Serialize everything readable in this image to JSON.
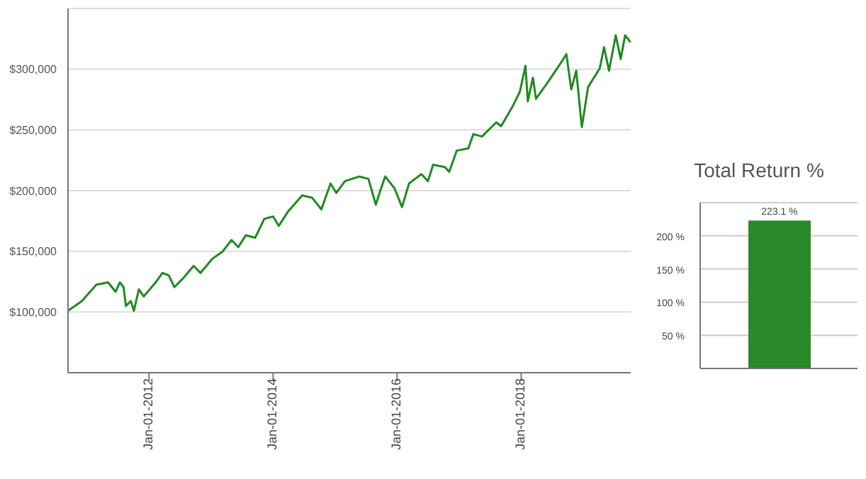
{
  "chart_data": [
    {
      "type": "line",
      "x": [
        "2010-09-11",
        "2010-12-01",
        "2011-02-25",
        "2011-05-05",
        "2011-06-18",
        "2011-07-13",
        "2011-08-04",
        "2011-08-18",
        "2011-09-16",
        "2011-10-04",
        "2011-11-02",
        "2011-12-01",
        "2012-02-09",
        "2012-03-20",
        "2012-04-26",
        "2012-05-29",
        "2012-07-23",
        "2012-09-20",
        "2012-10-30",
        "2013-01-08",
        "2013-03-08",
        "2013-05-01",
        "2013-06-10",
        "2013-07-24",
        "2013-09-17",
        "2013-11-10",
        "2014-01-01",
        "2014-02-03",
        "2014-03-29",
        "2014-06-21",
        "2014-08-18",
        "2014-10-12",
        "2014-12-05",
        "2015-01-08",
        "2015-02-28",
        "2015-05-23",
        "2015-07-16",
        "2015-08-29",
        "2015-09-24",
        "2015-10-23",
        "2015-12-17",
        "2016-01-30",
        "2016-03-11",
        "2016-05-23",
        "2016-07-01",
        "2016-07-31",
        "2016-10-08",
        "2016-11-03",
        "2016-12-17",
        "2017-02-24",
        "2017-03-25",
        "2017-05-15",
        "2017-08-07",
        "2017-09-05",
        "2017-11-13",
        "2017-12-24",
        "2018-01-26",
        "2018-02-09",
        "2018-03-11",
        "2018-03-29",
        "2018-06-06",
        "2018-08-29",
        "2018-09-24",
        "2018-10-23",
        "2018-11-21",
        "2018-12-24",
        "2019-01-30",
        "2019-04-09",
        "2019-05-04",
        "2019-06-02",
        "2019-07-12",
        "2019-08-10",
        "2019-09-05",
        "2019-10-08"
      ],
      "series": [
        {
          "color": "#208a20",
          "values": [
            101000,
            109000,
            122500,
            124400,
            116700,
            124400,
            120500,
            105000,
            109000,
            101000,
            118600,
            112800,
            124400,
            132200,
            130200,
            120500,
            128300,
            138000,
            132200,
            143800,
            149600,
            159300,
            153500,
            163200,
            161200,
            176700,
            178700,
            170900,
            182600,
            196100,
            194200,
            184500,
            205800,
            198100,
            207800,
            211600,
            209700,
            188400,
            200000,
            211600,
            201900,
            186400,
            205800,
            213600,
            207800,
            221300,
            219400,
            215500,
            232900,
            234900,
            246500,
            244600,
            256200,
            253100,
            269800,
            281400,
            302700,
            273600,
            293000,
            275600,
            289100,
            306600,
            312400,
            283300,
            298800,
            252300,
            285300,
            300800,
            318200,
            298800,
            327900,
            308500,
            327900,
            322100
          ]
        }
      ],
      "xlim": [
        "2010-09-11",
        "2019-10-08"
      ],
      "xticks": [
        {
          "value": "2012-01-01",
          "label": "Jan-01-2012"
        },
        {
          "value": "2014-01-01",
          "label": "Jan-01-2014"
        },
        {
          "value": "2016-01-01",
          "label": "Jan-01-2016"
        },
        {
          "value": "2018-01-01",
          "label": "Jan-01-2018"
        }
      ],
      "ylim": [
        50000,
        350000
      ],
      "yticks": [
        {
          "value": 100000,
          "label": "$100,000"
        },
        {
          "value": 150000,
          "label": "$150,000"
        },
        {
          "value": 200000,
          "label": "$200,000"
        },
        {
          "value": 250000,
          "label": "$250,000"
        },
        {
          "value": 300000,
          "label": "$300,000"
        }
      ],
      "grid": "y",
      "marker": "none",
      "line_style": "solid"
    },
    {
      "type": "bar",
      "title": "Total Return %",
      "categories": [
        null
      ],
      "values": [
        223.1
      ],
      "color": "#2a8a2a",
      "value_labels": [
        "223.1 %"
      ],
      "ylim": [
        0,
        250
      ],
      "yticks": [
        {
          "value": 50,
          "label": "50 %"
        },
        {
          "value": 100,
          "label": "100 %"
        },
        {
          "value": 150,
          "label": "150 %"
        },
        {
          "value": 200,
          "label": "200 %"
        }
      ],
      "grid": "y"
    }
  ]
}
